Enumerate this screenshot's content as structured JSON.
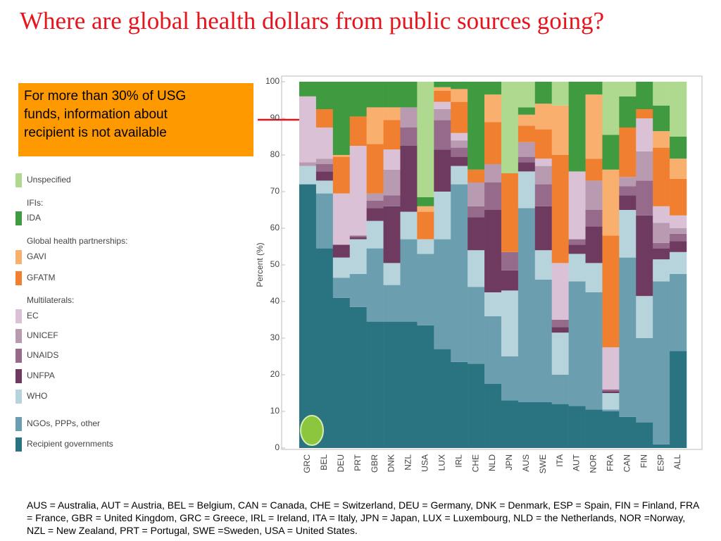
{
  "title": "Where are global health dollars from public sources going?",
  "annotation": [
    "For more than 30% of USG",
    "funds, information about",
    "recipient is not available"
  ],
  "footnote": "AUS = Australia, AUT = Austria, BEL = Belgium, CAN = Canada, CHE = Switzerland, DEU = Germany, DNK = Denmark, ESP = Spain, FIN = Finland, FRA = France, GBR = United Kingdom, GRC = Greece, IRL = Ireland, ITA = Italy, JPN = Japan, LUX = Luxembourg, NLD = the Netherlands, NOR =Norway, NZL = New Zealand, PRT = Portugal, SWE =Sweden, USA = United States.",
  "chart_data": {
    "type": "stacked_bar",
    "ylabel": "Percent (%)",
    "ylim": [
      0,
      100
    ],
    "yticks": [
      0,
      10,
      20,
      30,
      40,
      50,
      60,
      70,
      80,
      90,
      100
    ],
    "legend_groups": [
      "IFIs:",
      "Global health partnerships:",
      "Multilaterals:"
    ],
    "categories": [
      "GRC",
      "BEL",
      "DEU",
      "PRT",
      "GBR",
      "DNK",
      "NZL",
      "USA",
      "LUX",
      "IRL",
      "CHE",
      "NLD",
      "JPN",
      "AUS",
      "SWE",
      "ITA",
      "AUT",
      "NOR",
      "FRA",
      "CAN",
      "FIN",
      "ESP",
      "ALL"
    ],
    "series": [
      {
        "name": "Recipient governments",
        "color": "#2a7482",
        "values": [
          72,
          54.5,
          41,
          38.5,
          34.5,
          34.5,
          34.5,
          33.5,
          27,
          23.5,
          23,
          17.5,
          13,
          12.5,
          12.5,
          12,
          11.5,
          10.5,
          10,
          8.5,
          7,
          1,
          26.5
        ]
      },
      {
        "name": "NGOs, PPPs, other",
        "color": "#6b9fb0",
        "values": [
          0,
          15,
          5.5,
          9,
          20,
          10,
          22.5,
          19.5,
          30,
          48.5,
          21,
          18.5,
          12,
          53,
          33.5,
          8,
          34,
          32,
          0.5,
          43.5,
          23,
          44.5,
          21
        ]
      },
      {
        "name": "WHO",
        "color": "#b7d4dd",
        "values": [
          5,
          3.5,
          5.5,
          9.5,
          7.5,
          6,
          7.5,
          4,
          13,
          5,
          10,
          6.5,
          18,
          10,
          8,
          11.5,
          7.5,
          8,
          4.5,
          13,
          11.5,
          6,
          6
        ]
      },
      {
        "name": "UNFPA",
        "color": "#6e3a5f",
        "values": [
          0,
          2.5,
          3.5,
          0.5,
          3.5,
          15.5,
          18,
          0,
          11.5,
          2.5,
          9,
          22.5,
          5.5,
          2.5,
          12,
          1.5,
          2.5,
          10,
          0.5,
          4,
          22,
          3,
          3
        ]
      },
      {
        "name": "UNAIDS",
        "color": "#966a8b",
        "values": [
          0,
          2,
          0,
          0.5,
          2,
          3,
          5,
          0,
          8,
          2.5,
          3,
          7.5,
          5,
          1.5,
          6,
          2,
          1.5,
          4.5,
          0.5,
          2.5,
          9.5,
          1.5,
          2
        ]
      },
      {
        "name": "UNICEF",
        "color": "#b99bb1",
        "values": [
          1,
          1.5,
          0,
          0,
          2,
          7,
          5.5,
          0,
          3,
          2,
          6.5,
          5,
          0,
          4,
          5,
          0,
          0,
          8,
          0,
          2.5,
          8,
          5.5,
          1.5
        ]
      },
      {
        "name": "EC",
        "color": "#dac1d5",
        "values": [
          18,
          8.5,
          14,
          24.5,
          0,
          5.5,
          0,
          0,
          2,
          2,
          0,
          0,
          0,
          0,
          2,
          15.5,
          18.5,
          0,
          11.5,
          0,
          9,
          4.5,
          3.5
        ]
      },
      {
        "name": "GFATM",
        "color": "#f0802f",
        "values": [
          0,
          5,
          10,
          8,
          13.5,
          8,
          0,
          7.5,
          3,
          8.5,
          3.5,
          11.5,
          21.5,
          4.5,
          8,
          29.5,
          0,
          6,
          30.5,
          13.5,
          2.5,
          16,
          10
        ]
      },
      {
        "name": "GAVI",
        "color": "#f9b06f",
        "values": [
          0,
          0,
          0.5,
          0,
          10,
          3.5,
          0,
          1.5,
          1,
          3.5,
          0,
          7.5,
          0,
          3,
          7,
          13.5,
          0,
          17.5,
          18,
          0,
          0,
          4.5,
          5.5
        ]
      },
      {
        "name": "IDA",
        "color": "#3f9a40",
        "values": [
          4,
          7.5,
          20,
          9.5,
          7,
          7,
          7,
          2.5,
          1.5,
          2,
          24,
          3.5,
          0,
          2,
          6,
          0,
          24.5,
          3.5,
          9.5,
          8.5,
          7.5,
          7,
          6
        ]
      },
      {
        "name": "Unspecified",
        "color": "#afd98f",
        "values": [
          0,
          0,
          0,
          0,
          0,
          0,
          0,
          31.5,
          0,
          0,
          0,
          0,
          25,
          7,
          0,
          6.5,
          0,
          0,
          14.5,
          4,
          0,
          6.5,
          15
        ]
      }
    ]
  }
}
